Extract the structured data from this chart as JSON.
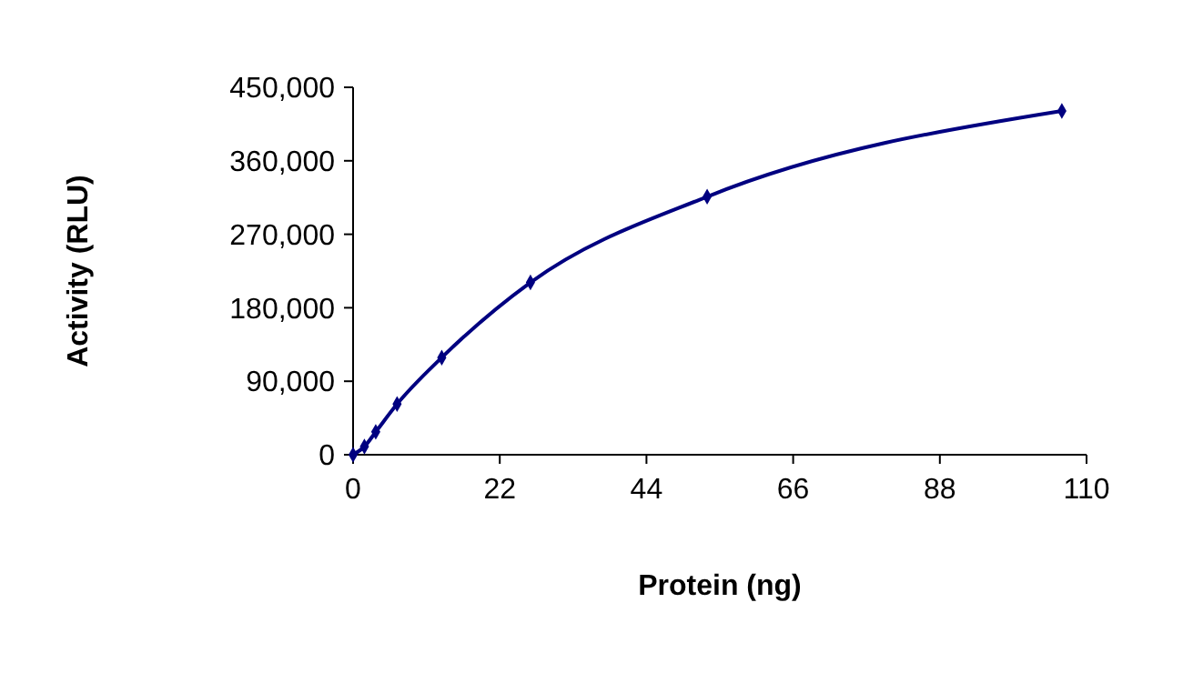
{
  "chart_data": {
    "type": "line",
    "xlabel": "Protein (ng)",
    "ylabel": "Activity (RLU)",
    "x": [
      0,
      1.7,
      3.4,
      6.6,
      13.3,
      26.6,
      53.1,
      106.3
    ],
    "series": [
      {
        "color": "#000080",
        "values": [
          0,
          10000,
          28000,
          62000,
          119000,
          211000,
          316000,
          421000
        ]
      }
    ],
    "xlim": [
      0,
      110
    ],
    "xticks": [
      0,
      22,
      44,
      66,
      88,
      110
    ],
    "ylim": [
      0,
      450000
    ],
    "yticks": [
      {
        "value": 0,
        "label": "0"
      },
      {
        "value": 90000,
        "label": "90,000"
      },
      {
        "value": 180000,
        "label": "180,000"
      },
      {
        "value": 270000,
        "label": "270,000"
      },
      {
        "value": 360000,
        "label": "360,000"
      },
      {
        "value": 450000,
        "label": "450,000"
      }
    ],
    "marker": "diamond",
    "line_style": "solid",
    "grid": false
  }
}
